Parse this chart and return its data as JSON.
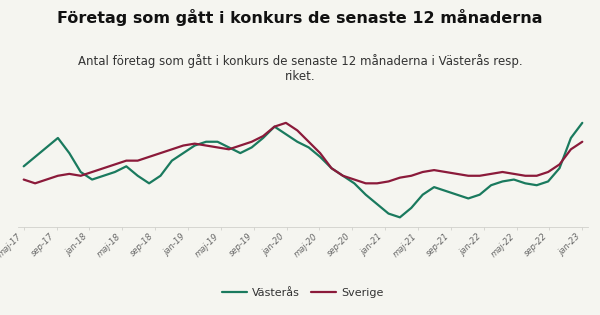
{
  "title": "Företag som gått i konkurs de senaste 12 månaderna",
  "subtitle": "Antal företag som gått i konkurs de senaste 12 månaderna i Västerås resp.\nriket.",
  "title_fontsize": 11.5,
  "subtitle_fontsize": 8.5,
  "background_color": "#f5f5f0",
  "vasteras_color": "#1a7a5e",
  "sverige_color": "#8b1a3a",
  "line_width": 1.6,
  "tick_labels": [
    "maj-17",
    "sep-17",
    "jan-18",
    "maj-18",
    "sep-18",
    "jan-19",
    "maj-19",
    "sep-19",
    "jan-20",
    "maj-20",
    "sep-20",
    "jan-21",
    "maj-21",
    "sep-21",
    "jan-22",
    "maj-22",
    "sep-22",
    "jan-23"
  ],
  "vasteras": [
    55,
    60,
    65,
    70,
    62,
    52,
    48,
    50,
    52,
    55,
    50,
    46,
    50,
    58,
    62,
    66,
    68,
    68,
    65,
    62,
    65,
    70,
    76,
    72,
    68,
    65,
    60,
    54,
    50,
    46,
    40,
    35,
    30,
    28,
    33,
    40,
    44,
    42,
    40,
    38,
    40,
    45,
    47,
    48,
    46,
    45,
    47,
    54,
    70,
    78
  ],
  "sverige": [
    48,
    46,
    48,
    50,
    51,
    50,
    52,
    54,
    56,
    58,
    58,
    60,
    62,
    64,
    66,
    67,
    66,
    65,
    64,
    66,
    68,
    71,
    76,
    78,
    74,
    68,
    62,
    54,
    50,
    48,
    46,
    46,
    47,
    49,
    50,
    52,
    53,
    52,
    51,
    50,
    50,
    51,
    52,
    51,
    50,
    50,
    52,
    56,
    64,
    68
  ],
  "legend_vasteras": "Västerås",
  "legend_sverige": "Sverige",
  "grid_color": "#d0d0cc",
  "tick_color": "#666666"
}
